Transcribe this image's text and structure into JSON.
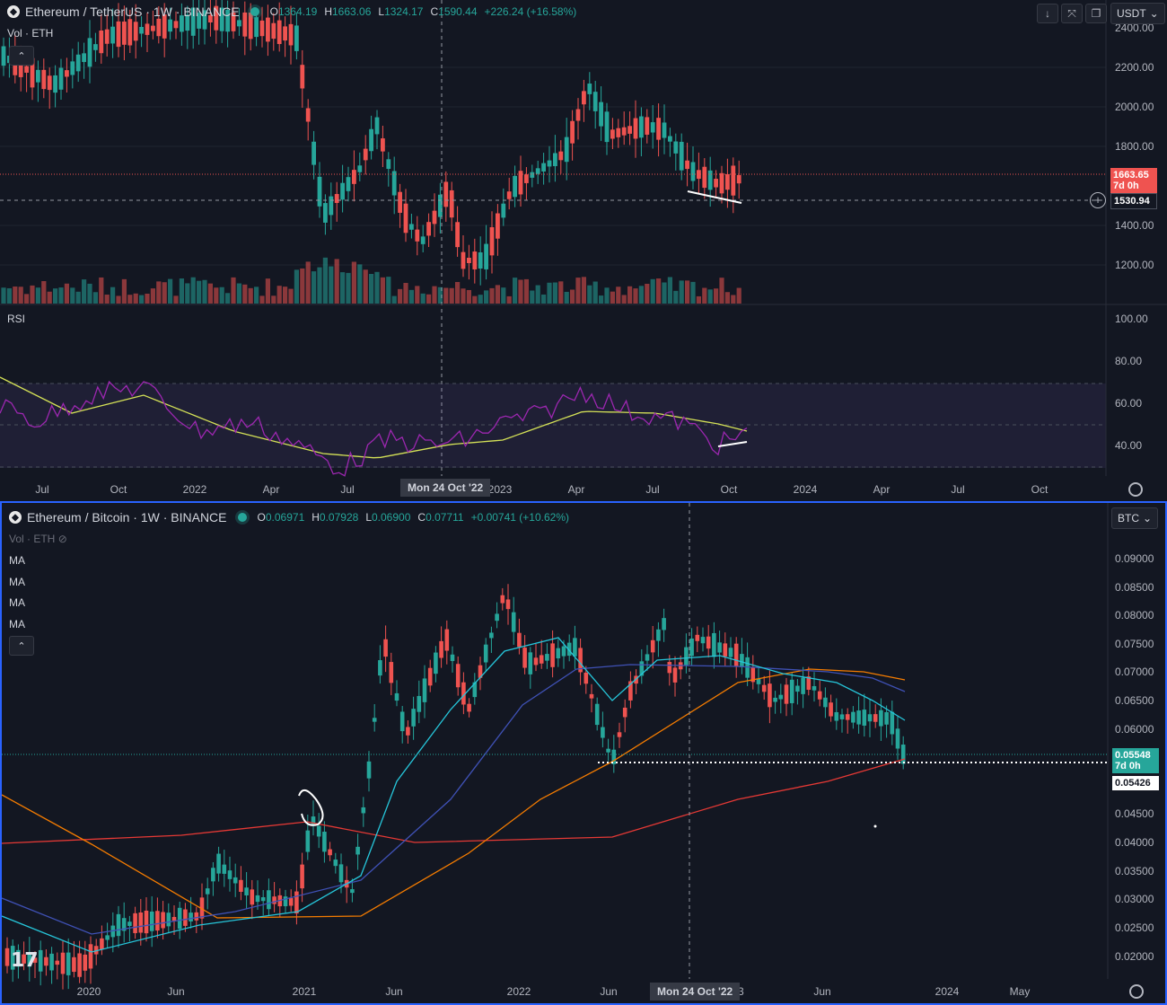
{
  "top_chart": {
    "title": "Ethereum / TetherUS · 1W · BINANCE",
    "ohlc": {
      "o_label": "O",
      "o": "1364.19",
      "h_label": "H",
      "h": "1663.06",
      "l_label": "L",
      "l": "1324.17",
      "c_label": "C",
      "c": "1590.44",
      "change": "+226.24 (+16.58%)"
    },
    "vol_label": "Vol · ETH",
    "currency": "USDT",
    "price_axis": [
      "2400.00",
      "2200.00",
      "2000.00",
      "1800.00",
      "1400.00",
      "1200.00"
    ],
    "last_price": "1663.65",
    "countdown": "7d 0h",
    "crosshair_price": "1530.94",
    "rsi_label": "RSI",
    "rsi_axis": [
      "100.00",
      "80.00",
      "60.00",
      "40.00"
    ],
    "time_axis": [
      "Jul",
      "Oct",
      "2022",
      "Apr",
      "Jul",
      "2023",
      "Apr",
      "Jul",
      "Oct",
      "2024",
      "Apr",
      "Jul",
      "Oct"
    ],
    "crosshair_date": "Mon 24 Oct '22"
  },
  "bottom_chart": {
    "title": "Ethereum / Bitcoin · 1W · BINANCE",
    "ohlc": {
      "o_label": "O",
      "o": "0.06971",
      "h_label": "H",
      "h": "0.07928",
      "l_label": "L",
      "l": "0.06900",
      "c_label": "C",
      "c": "0.07711",
      "change": "+0.00741 (+10.62%)"
    },
    "vol_label": "Vol · ETH",
    "ma_labels": [
      "MA",
      "MA",
      "MA",
      "MA"
    ],
    "currency": "BTC",
    "price_axis": [
      "0.09000",
      "0.08500",
      "0.08000",
      "0.07500",
      "0.07000",
      "0.06500",
      "0.06000",
      "0.04500",
      "0.04000",
      "0.03500",
      "0.03000",
      "0.02500",
      "0.02000"
    ],
    "last_price": "0.05548",
    "countdown": "7d 0h",
    "crosshair_price": "0.05426",
    "time_axis": [
      "2020",
      "Jun",
      "2021",
      "Jun",
      "2022",
      "Jun",
      "23",
      "Jun",
      "2024",
      "May"
    ],
    "crosshair_date": "Mon 24 Oct '22"
  },
  "colors": {
    "up": "#26a69a",
    "down": "#ef5350",
    "rsi": "#9c27b0",
    "rsi_ma": "#d4e157",
    "ma_cyan": "#26c6da",
    "ma_blue": "#3f51b5",
    "ma_orange": "#f57c00",
    "ma_red": "#e53935",
    "accent": "#2962ff"
  }
}
